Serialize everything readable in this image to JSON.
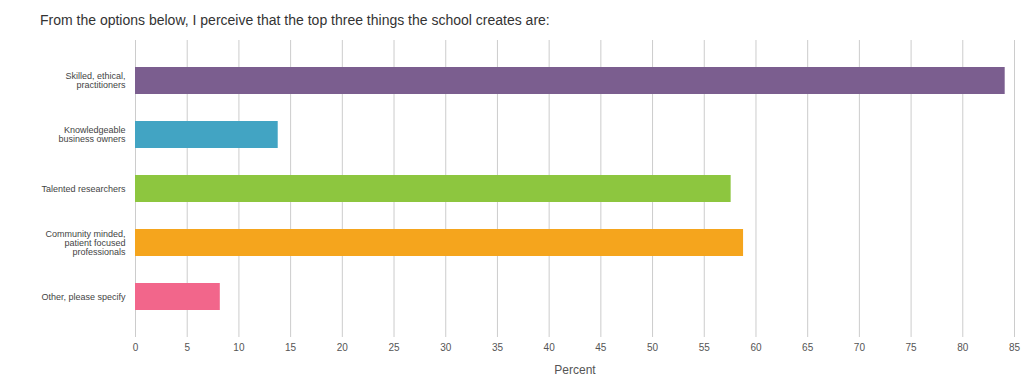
{
  "chart_data": {
    "type": "bar",
    "orientation": "horizontal",
    "title": "From the options below, I perceive that the top three things the school creates are:",
    "categories": [
      "Skilled, ethical, practitioners",
      "Knowledgeable business owners",
      "Talented researchers",
      "Community minded, patient focused professionals",
      "Other, please specify"
    ],
    "values": [
      84.1,
      13.8,
      57.6,
      58.8,
      8.2
    ],
    "colors": [
      "#7b5e8f",
      "#42a4c3",
      "#8dc63f",
      "#f5a51d",
      "#f2668b"
    ],
    "x_label": "Percent",
    "xlim": [
      0,
      85
    ],
    "xticks": [
      0,
      5,
      10,
      15,
      20,
      25,
      30,
      35,
      40,
      45,
      50,
      55,
      60,
      65,
      70,
      75,
      80,
      85
    ],
    "grid": true
  }
}
